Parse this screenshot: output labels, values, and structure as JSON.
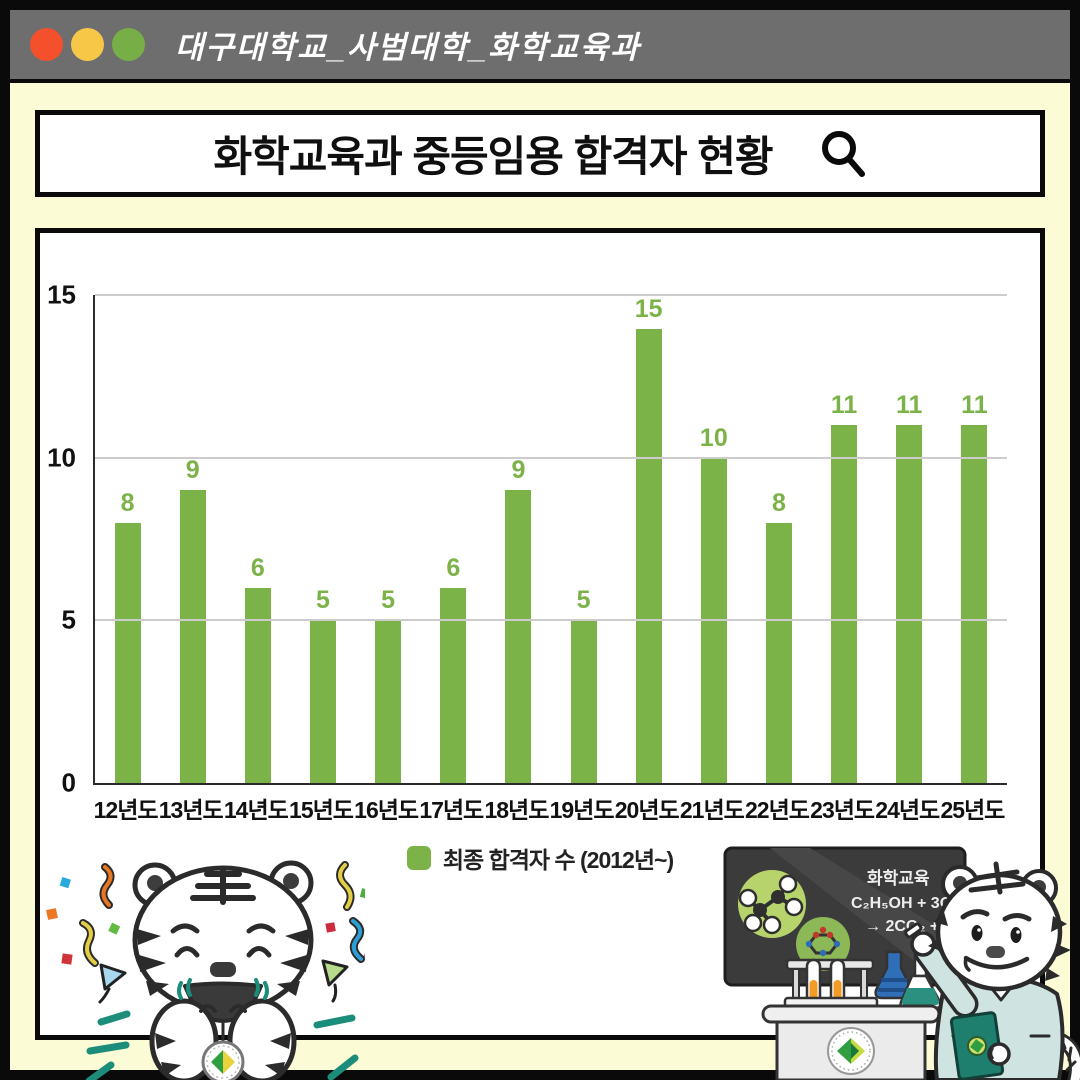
{
  "titlebar": {
    "title": "대구대학교_사범대학_화학교육과",
    "buttons": [
      {
        "name": "red",
        "color": "#f4502c"
      },
      {
        "name": "yellow",
        "color": "#f7c848"
      },
      {
        "name": "green",
        "color": "#77ae46"
      }
    ]
  },
  "search_bar": {
    "title": "화학교육과 중등임용 합격자 현황",
    "icon": "search-icon"
  },
  "chart_data": {
    "type": "bar",
    "title": "화학교육과 중등임용 합격자 현황",
    "categories": [
      "12년도",
      "13년도",
      "14년도",
      "15년도",
      "16년도",
      "17년도",
      "18년도",
      "19년도",
      "20년도",
      "21년도",
      "22년도",
      "23년도",
      "24년도",
      "25년도"
    ],
    "values": [
      8,
      9,
      6,
      5,
      5,
      6,
      9,
      5,
      15,
      10,
      8,
      11,
      11,
      11
    ],
    "xlabel": "",
    "ylabel": "",
    "ylim": [
      0,
      15
    ],
    "yticks": [
      0,
      5,
      10,
      15
    ],
    "grid": true,
    "value_labels": true,
    "bar_color": "#7cb349",
    "legend": {
      "label": "최종 합격자 수 (2012년~)",
      "position": "bottom"
    }
  },
  "illustrations": {
    "blackboard": {
      "title": "화학교육",
      "equation_line1": "C₂H₅OH + 3O₂",
      "equation_line2": "→ 2CO₂ + 3H₂O"
    }
  },
  "colors": {
    "background_cream": "#fbfbd6",
    "titlebar_gray": "#6e6e6e",
    "bar_green": "#7cb349",
    "accent_teal": "#1b8d7a",
    "blackboard_dark": "#3b3b3b",
    "labcoat_mint": "#cfe4e0"
  }
}
